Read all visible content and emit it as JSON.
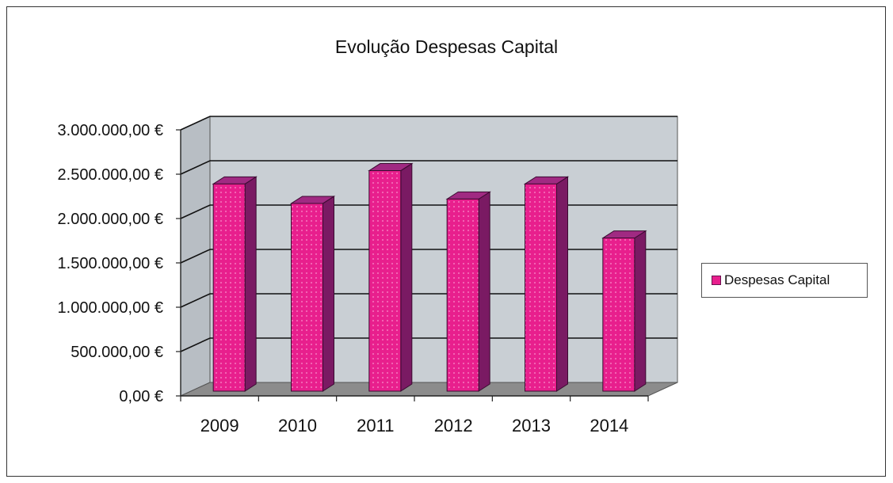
{
  "chart_data": {
    "type": "bar",
    "title": "Evolução Despesas Capital",
    "categories": [
      "2009",
      "2010",
      "2011",
      "2012",
      "2013",
      "2014"
    ],
    "series": [
      {
        "name": "Despesas Capital",
        "values": [
          2390000,
          2170000,
          2540000,
          2220000,
          2390000,
          1780000
        ]
      }
    ],
    "ylim": [
      0,
      3000000
    ],
    "yticks": [
      "0,00 €",
      "500.000,00 €",
      "1.000.000,00 €",
      "1.500.000,00 €",
      "2.000.000,00 €",
      "2.500.000,00 €",
      "3.000.000,00 €"
    ],
    "xlabel": "",
    "ylabel": "",
    "grid": true,
    "legend": "right",
    "colors": {
      "bar_front": "#e81f8d",
      "bar_side": "#7a1a63",
      "bar_top": "#a02a82",
      "wall": "#c9cfd4",
      "floor": "#8c8c8c"
    }
  }
}
